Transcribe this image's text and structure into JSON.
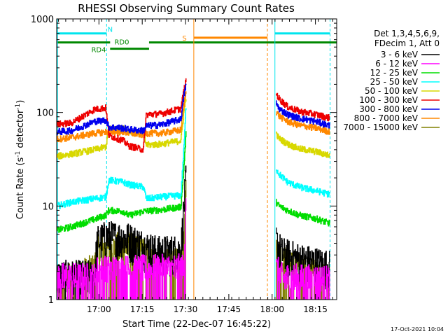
{
  "chart_data": {
    "type": "line",
    "title": "RHESSI Observing Summary Count Rates",
    "xlabel": "Start Time (22-Dec-07 16:45:22)",
    "ylabel_main": "Count Rate (s",
    "ylabel_sup1": "-1",
    "ylabel_mid": " detector",
    "ylabel_sup2": "-1",
    "ylabel_end": ")",
    "x_unit": "minutes since 16:45:22",
    "xlim": [
      0,
      97
    ],
    "ylim": [
      1,
      1000
    ],
    "yscale": "log",
    "x_ticks": [
      {
        "value": 14.63,
        "label": "17:00"
      },
      {
        "value": 29.63,
        "label": "17:15"
      },
      {
        "value": 44.63,
        "label": "17:30"
      },
      {
        "value": 59.63,
        "label": "17:45"
      },
      {
        "value": 74.63,
        "label": "18:00"
      },
      {
        "value": 89.63,
        "label": "18:15"
      }
    ],
    "y_ticks": [
      {
        "value": 1,
        "label": "1"
      },
      {
        "value": 10,
        "label": "10"
      },
      {
        "value": 100,
        "label": "100"
      },
      {
        "value": 1000,
        "label": "1000"
      }
    ],
    "legend": {
      "header": [
        "Det 1,3,4,5,6,9,",
        "FDecim 1, Att 0"
      ],
      "placement": "right"
    },
    "series": [
      {
        "name": "3 - 6 keV",
        "color": "#000000"
      },
      {
        "name": "6 - 12 keV",
        "color": "#ff00ff"
      },
      {
        "name": "12 - 25 keV",
        "color": "#00dd00"
      },
      {
        "name": "25 - 50 keV",
        "color": "#00ffff"
      },
      {
        "name": "50 - 100 keV",
        "color": "#d8d800"
      },
      {
        "name": "100 - 300 keV",
        "color": "#ee0000"
      },
      {
        "name": "300 - 800 keV",
        "color": "#0000ee"
      },
      {
        "name": "800 - 7000 keV",
        "color": "#ff8800"
      },
      {
        "name": "7000 - 15000 keV",
        "color": "#808000"
      }
    ],
    "annotations": {
      "night": {
        "label": "N",
        "color": "#00e5ee",
        "intervals": [
          [
            0,
            17.3
          ],
          [
            75.6,
            94.7
          ]
        ],
        "y": 700
      },
      "saa": {
        "label": "S",
        "color": "#ff8800",
        "interval": [
          47.5,
          73
        ],
        "y": 630
      },
      "rd0": {
        "label": "RD0",
        "color": "#008800",
        "y": 560
      },
      "rd4": {
        "label": "RD4",
        "color": "#008800",
        "y": 480,
        "interval": [
          18.5,
          32
        ]
      },
      "green_bars": [
        [
          0,
          18.5
        ],
        [
          32,
          97
        ]
      ]
    },
    "segments": [
      [
        0,
        44.8
      ],
      [
        76,
        94.5
      ]
    ],
    "profiles": {
      "3 - 6 keV": [
        [
          0,
          1.7
        ],
        [
          13,
          1.7
        ],
        [
          14,
          4
        ],
        [
          17,
          4.5
        ],
        [
          23,
          4.4
        ],
        [
          25,
          4.3
        ],
        [
          30,
          3.6
        ],
        [
          35,
          3.1
        ],
        [
          43,
          3.2
        ],
        [
          44,
          9
        ],
        [
          44.8,
          20
        ],
        [
          76,
          4
        ],
        [
          78,
          3
        ],
        [
          84,
          2.6
        ],
        [
          94,
          2.2
        ]
      ],
      "6 - 12 keV": [
        [
          0,
          1.6
        ],
        [
          13,
          1.6
        ],
        [
          14,
          1.9
        ],
        [
          44,
          2
        ],
        [
          44.8,
          15
        ],
        [
          76,
          2
        ],
        [
          78,
          1.6
        ],
        [
          94,
          1.5
        ]
      ],
      "12 - 25 keV": [
        [
          0,
          5.5
        ],
        [
          5,
          6
        ],
        [
          13,
          7.2
        ],
        [
          17,
          8
        ],
        [
          18,
          9
        ],
        [
          23,
          8.8
        ],
        [
          25,
          7.9
        ],
        [
          30,
          8.8
        ],
        [
          36,
          9.1
        ],
        [
          43,
          9.8
        ],
        [
          44,
          25
        ],
        [
          44.8,
          60
        ],
        [
          76,
          11
        ],
        [
          77,
          10
        ],
        [
          80,
          9
        ],
        [
          84,
          8
        ],
        [
          90,
          7.3
        ],
        [
          94,
          6.6
        ]
      ],
      "25 - 50 keV": [
        [
          0,
          10
        ],
        [
          5,
          11
        ],
        [
          13,
          12
        ],
        [
          17,
          12.5
        ],
        [
          18,
          19
        ],
        [
          23,
          18
        ],
        [
          25,
          17
        ],
        [
          30,
          16
        ],
        [
          31,
          12
        ],
        [
          36,
          12.5
        ],
        [
          43,
          13
        ],
        [
          44,
          40
        ],
        [
          44.8,
          120
        ],
        [
          76,
          25
        ],
        [
          77,
          22
        ],
        [
          80,
          18
        ],
        [
          84,
          16
        ],
        [
          90,
          14.5
        ],
        [
          94,
          13.5
        ]
      ],
      "50 - 100 keV": [
        [
          0,
          34
        ],
        [
          5,
          36
        ],
        [
          13,
          40
        ],
        [
          17,
          43
        ],
        [
          18,
          67
        ],
        [
          23,
          67
        ],
        [
          25,
          63
        ],
        [
          30,
          60
        ],
        [
          31,
          45
        ],
        [
          36,
          46
        ],
        [
          43,
          50
        ],
        [
          44,
          100
        ],
        [
          44.8,
          150
        ],
        [
          76,
          58
        ],
        [
          77,
          53
        ],
        [
          80,
          46
        ],
        [
          84,
          41
        ],
        [
          90,
          38
        ],
        [
          94,
          35
        ]
      ],
      "100 - 300 keV": [
        [
          0,
          75
        ],
        [
          5,
          77
        ],
        [
          13,
          108
        ],
        [
          17,
          112
        ],
        [
          18,
          57
        ],
        [
          23,
          50
        ],
        [
          25,
          44
        ],
        [
          30,
          40
        ],
        [
          31,
          95
        ],
        [
          36,
          97
        ],
        [
          43,
          110
        ],
        [
          44,
          170
        ],
        [
          44.8,
          220
        ],
        [
          76,
          160
        ],
        [
          77,
          140
        ],
        [
          80,
          115
        ],
        [
          84,
          103
        ],
        [
          90,
          95
        ],
        [
          94,
          88
        ]
      ],
      "300 - 800 keV": [
        [
          0,
          62
        ],
        [
          5,
          64
        ],
        [
          13,
          80
        ],
        [
          17,
          83
        ],
        [
          18,
          70
        ],
        [
          23,
          68
        ],
        [
          25,
          66
        ],
        [
          30,
          64
        ],
        [
          31,
          72
        ],
        [
          36,
          74
        ],
        [
          43,
          85
        ],
        [
          44,
          150
        ],
        [
          44.8,
          200
        ],
        [
          76,
          125
        ],
        [
          77,
          110
        ],
        [
          80,
          95
        ],
        [
          84,
          87
        ],
        [
          90,
          80
        ],
        [
          94,
          73
        ]
      ],
      "800 - 7000 keV": [
        [
          0,
          52
        ],
        [
          5,
          54
        ],
        [
          13,
          60
        ],
        [
          17,
          62
        ],
        [
          18,
          62
        ],
        [
          23,
          62
        ],
        [
          25,
          60
        ],
        [
          30,
          58
        ],
        [
          31,
          60
        ],
        [
          36,
          60
        ],
        [
          43,
          65
        ],
        [
          44,
          120
        ],
        [
          44.8,
          170
        ],
        [
          76,
          103
        ],
        [
          77,
          92
        ],
        [
          80,
          80
        ],
        [
          84,
          73
        ],
        [
          90,
          68
        ],
        [
          94,
          63
        ]
      ],
      "7000 - 15000 keV": [
        [
          0,
          1.4
        ],
        [
          13,
          2
        ],
        [
          14,
          3.2
        ],
        [
          25,
          3.5
        ],
        [
          30,
          3
        ],
        [
          36,
          2.2
        ],
        [
          43,
          2.3
        ],
        [
          44,
          8
        ],
        [
          44.8,
          13
        ],
        [
          76,
          3.5
        ],
        [
          78,
          2.5
        ],
        [
          84,
          2
        ],
        [
          94,
          1.6
        ]
      ]
    }
  },
  "timestamp": "17-Oct-2021 10:04"
}
